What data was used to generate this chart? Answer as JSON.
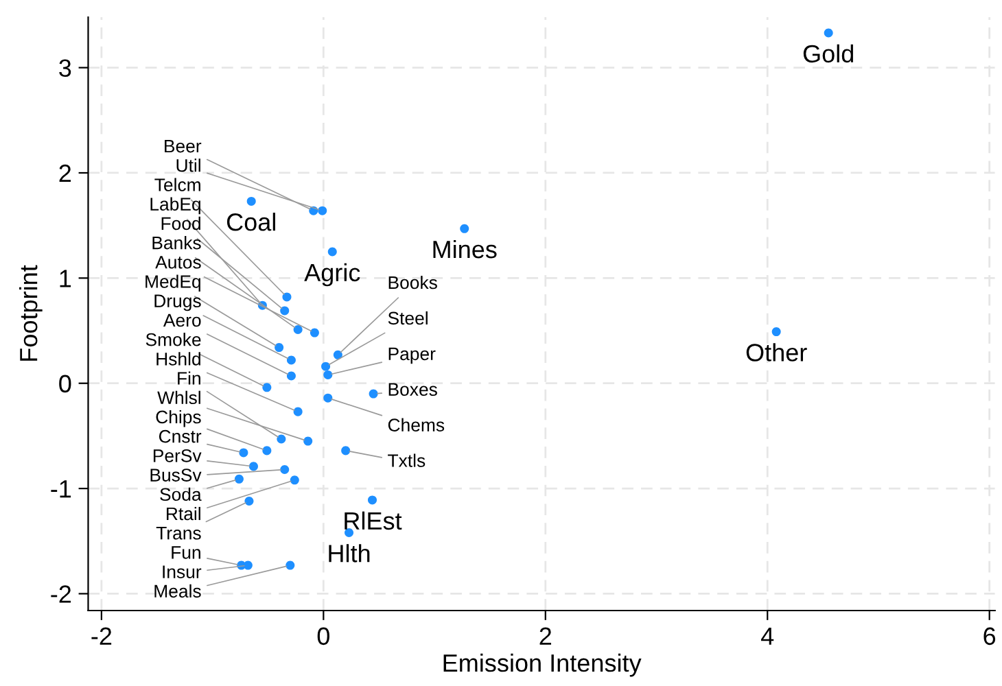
{
  "chart_data": {
    "type": "scatter",
    "xlabel": "Emission Intensity",
    "ylabel": "Footprint",
    "xlim": [
      -2.12,
      6.05
    ],
    "ylim": [
      -2.16,
      3.48
    ],
    "xticks": [
      -2,
      0,
      2,
      4,
      6
    ],
    "yticks": [
      -2,
      -1,
      0,
      1,
      2,
      3
    ],
    "grid": true,
    "marker": "circle",
    "series": [
      {
        "color": "#1e8fff",
        "x": [
          4.55,
          4.08,
          1.27,
          -0.65,
          -0.09,
          -0.01,
          0.08,
          -0.55,
          -0.33,
          -0.35,
          -0.23,
          -0.08,
          -0.4,
          0.13,
          -0.29,
          -0.29,
          0.02,
          0.04,
          -0.51,
          0.45,
          0.04,
          -0.23,
          -0.38,
          -0.14,
          -0.51,
          -0.35,
          0.2,
          -0.72,
          -0.63,
          -0.76,
          -0.67,
          -0.26,
          0.23,
          0.44,
          -0.74,
          -0.68,
          -0.3
        ],
        "values": [
          3.33,
          0.49,
          1.47,
          1.73,
          1.64,
          1.64,
          1.25,
          0.74,
          0.82,
          0.69,
          0.51,
          0.48,
          0.34,
          0.27,
          0.22,
          0.07,
          0.16,
          0.08,
          -0.04,
          -0.1,
          -0.14,
          -0.27,
          -0.53,
          -0.55,
          -0.64,
          -0.82,
          -0.64,
          -0.66,
          -0.79,
          -0.91,
          -1.12,
          -0.92,
          -1.42,
          -1.11,
          -1.73,
          -1.73,
          -1.73
        ]
      }
    ],
    "annotations": [
      {
        "text": "Gold",
        "x": 4.55,
        "y": 3.33
      },
      {
        "text": "Other",
        "x": 4.08,
        "y": 0.49
      },
      {
        "text": "Mines",
        "x": 1.27,
        "y": 1.47
      },
      {
        "text": "Coal",
        "x": -0.65,
        "y": 1.73
      },
      {
        "text": "Beer",
        "x": -0.09,
        "y": 1.64
      },
      {
        "text": "Util",
        "x": -0.01,
        "y": 1.64
      },
      {
        "text": "Agric",
        "x": 0.08,
        "y": 1.25
      },
      {
        "text": "LabEq",
        "x": -0.55,
        "y": 0.74
      },
      {
        "text": "Telcm",
        "x": -0.33,
        "y": 0.82
      },
      {
        "text": "Food",
        "x": -0.35,
        "y": 0.69
      },
      {
        "text": "Banks",
        "x": -0.23,
        "y": 0.51
      },
      {
        "text": "Autos",
        "x": -0.08,
        "y": 0.48
      },
      {
        "text": "MedEq",
        "x": -0.4,
        "y": 0.34
      },
      {
        "text": "Books",
        "x": 0.13,
        "y": 0.27
      },
      {
        "text": "Drugs",
        "x": -0.29,
        "y": 0.22
      },
      {
        "text": "Aero",
        "x": -0.29,
        "y": 0.07
      },
      {
        "text": "Steel",
        "x": 0.02,
        "y": 0.16
      },
      {
        "text": "Paper",
        "x": 0.04,
        "y": 0.08
      },
      {
        "text": "Smoke",
        "x": -0.51,
        "y": -0.04
      },
      {
        "text": "Boxes",
        "x": 0.45,
        "y": -0.1
      },
      {
        "text": "Chems",
        "x": 0.04,
        "y": -0.14
      },
      {
        "text": "Hshld",
        "x": -0.23,
        "y": -0.27
      },
      {
        "text": "Fin",
        "x": -0.38,
        "y": -0.53
      },
      {
        "text": "Whlsl",
        "x": -0.14,
        "y": -0.55
      },
      {
        "text": "Chips",
        "x": -0.51,
        "y": -0.64
      },
      {
        "text": "BusSv",
        "x": -0.35,
        "y": -0.82
      },
      {
        "text": "Txtls",
        "x": 0.2,
        "y": -0.64
      },
      {
        "text": "Cnstr",
        "x": -0.72,
        "y": -0.66
      },
      {
        "text": "PerSv",
        "x": -0.63,
        "y": -0.79
      },
      {
        "text": "Soda",
        "x": -0.76,
        "y": -0.91
      },
      {
        "text": "Trans",
        "x": -0.67,
        "y": -1.12
      },
      {
        "text": "Rtail",
        "x": -0.26,
        "y": -0.92
      },
      {
        "text": "Hlth",
        "x": 0.23,
        "y": -1.42
      },
      {
        "text": "RlEst",
        "x": 0.44,
        "y": -1.11
      },
      {
        "text": "Fun",
        "x": -0.74,
        "y": -1.73
      },
      {
        "text": "Insur",
        "x": -0.68,
        "y": -1.73
      },
      {
        "text": "Meals",
        "x": -0.3,
        "y": -1.73
      }
    ]
  }
}
